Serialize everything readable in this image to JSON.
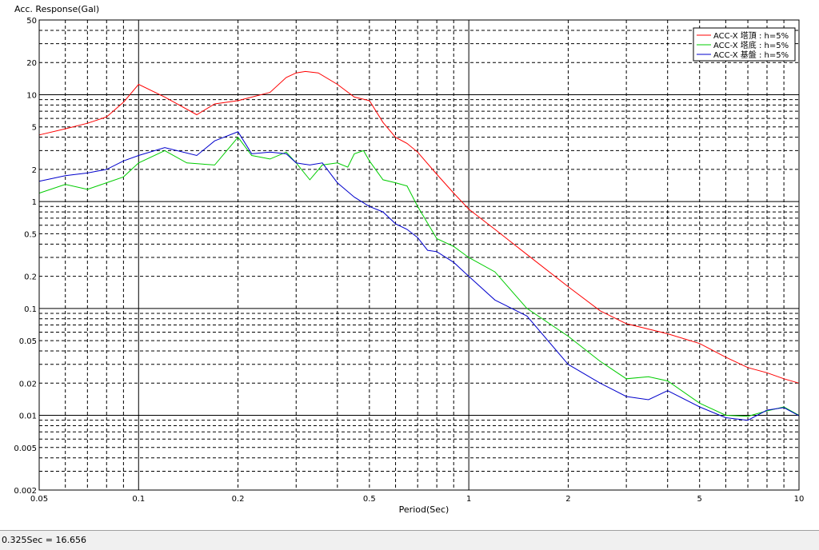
{
  "chart_data": {
    "type": "line",
    "title": "",
    "ylabel": "Acc. Response(Gal)",
    "xlabel": "Period(Sec)",
    "x_scale": "log",
    "y_scale": "log",
    "xlim": [
      0.05,
      10
    ],
    "ylim": [
      0.002,
      50
    ],
    "grid": true,
    "legend_position": "top-right",
    "x_tick_labels": [
      {
        "value": 0.05,
        "label": "0.05"
      },
      {
        "value": 0.1,
        "label": "0.1"
      },
      {
        "value": 0.2,
        "label": "0.2"
      },
      {
        "value": 0.5,
        "label": "0.5"
      },
      {
        "value": 1,
        "label": "1"
      },
      {
        "value": 2,
        "label": "2"
      },
      {
        "value": 5,
        "label": "5"
      },
      {
        "value": 10,
        "label": "10"
      }
    ],
    "y_tick_labels": [
      {
        "value": 50,
        "label": "50"
      },
      {
        "value": 20,
        "label": "20"
      },
      {
        "value": 10,
        "label": "10"
      },
      {
        "value": 5,
        "label": "5"
      },
      {
        "value": 2,
        "label": "2"
      },
      {
        "value": 1,
        "label": "1"
      },
      {
        "value": 0.5,
        "label": "0.5"
      },
      {
        "value": 0.2,
        "label": "0.2"
      },
      {
        "value": 0.1,
        "label": "0.1"
      },
      {
        "value": 0.05,
        "label": "0.05"
      },
      {
        "value": 0.02,
        "label": "0.02"
      },
      {
        "value": 0.01,
        "label": "0.01"
      },
      {
        "value": 0.005,
        "label": "0.005"
      },
      {
        "value": 0.002,
        "label": "0.002"
      }
    ],
    "series": [
      {
        "name": "ACC-X 塔頂 : h=5%",
        "color": "#ff0000",
        "x": [
          0.05,
          0.06,
          0.07,
          0.08,
          0.09,
          0.1,
          0.12,
          0.15,
          0.17,
          0.2,
          0.25,
          0.28,
          0.3,
          0.32,
          0.35,
          0.4,
          0.45,
          0.5,
          0.55,
          0.6,
          0.65,
          0.7,
          0.8,
          0.9,
          1.0,
          1.2,
          1.5,
          2.0,
          2.5,
          3.0,
          4.0,
          5.0,
          6.0,
          7.0,
          8.0,
          9.0,
          10.0
        ],
        "y": [
          4.2,
          4.8,
          5.4,
          6.2,
          8.5,
          12.5,
          9.5,
          6.5,
          8.2,
          8.8,
          10.5,
          14.5,
          16.0,
          16.5,
          16.0,
          12.5,
          9.5,
          8.8,
          5.5,
          4.0,
          3.5,
          2.9,
          1.8,
          1.2,
          0.85,
          0.55,
          0.32,
          0.16,
          0.095,
          0.072,
          0.058,
          0.047,
          0.035,
          0.028,
          0.025,
          0.022,
          0.02
        ]
      },
      {
        "name": "ACC-X 塔底 : h=5%",
        "color": "#00cc00",
        "x": [
          0.05,
          0.06,
          0.07,
          0.08,
          0.09,
          0.1,
          0.12,
          0.14,
          0.17,
          0.2,
          0.22,
          0.25,
          0.28,
          0.3,
          0.33,
          0.36,
          0.4,
          0.43,
          0.45,
          0.48,
          0.5,
          0.55,
          0.6,
          0.65,
          0.7,
          0.8,
          0.9,
          1.0,
          1.2,
          1.5,
          2.0,
          2.5,
          3.0,
          3.5,
          4.0,
          5.0,
          6.0,
          7.0,
          8.0,
          9.0,
          10.0
        ],
        "y": [
          1.2,
          1.45,
          1.3,
          1.5,
          1.7,
          2.3,
          3.0,
          2.3,
          2.2,
          4.0,
          2.7,
          2.5,
          2.9,
          2.3,
          1.6,
          2.2,
          2.3,
          2.1,
          2.8,
          3.0,
          2.4,
          1.6,
          1.5,
          1.4,
          0.9,
          0.45,
          0.38,
          0.3,
          0.22,
          0.1,
          0.055,
          0.032,
          0.022,
          0.023,
          0.021,
          0.013,
          0.01,
          0.0098,
          0.011,
          0.012,
          0.01
        ]
      },
      {
        "name": "ACC-X 基盤 : h=5%",
        "color": "#0000cc",
        "x": [
          0.05,
          0.06,
          0.07,
          0.08,
          0.09,
          0.1,
          0.12,
          0.15,
          0.17,
          0.2,
          0.22,
          0.25,
          0.28,
          0.3,
          0.33,
          0.36,
          0.4,
          0.45,
          0.5,
          0.55,
          0.6,
          0.65,
          0.7,
          0.75,
          0.8,
          0.9,
          1.0,
          1.2,
          1.5,
          2.0,
          2.5,
          3.0,
          3.5,
          4.0,
          5.0,
          6.0,
          7.0,
          8.0,
          9.0,
          10.0
        ],
        "y": [
          1.55,
          1.75,
          1.85,
          2.0,
          2.4,
          2.7,
          3.2,
          2.7,
          3.7,
          4.5,
          2.8,
          2.9,
          2.8,
          2.3,
          2.2,
          2.3,
          1.5,
          1.1,
          0.9,
          0.8,
          0.62,
          0.55,
          0.46,
          0.35,
          0.34,
          0.27,
          0.2,
          0.12,
          0.085,
          0.03,
          0.02,
          0.015,
          0.014,
          0.017,
          0.012,
          0.0095,
          0.009,
          0.0112,
          0.0118,
          0.0099
        ]
      }
    ]
  },
  "status": {
    "readout": "0.325Sec = 16.656"
  }
}
